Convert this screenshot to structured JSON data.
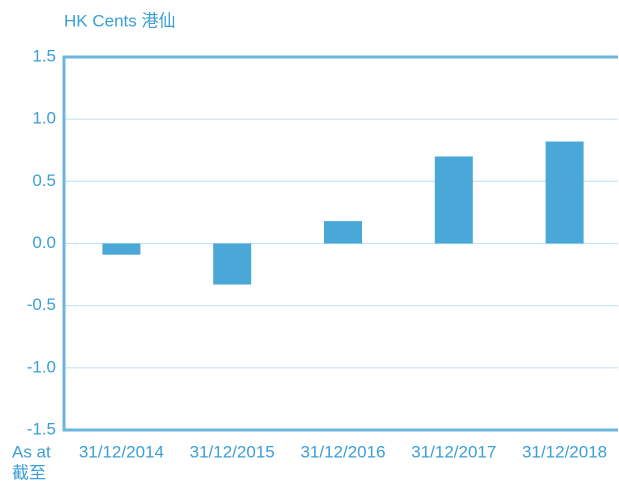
{
  "chart_data": {
    "type": "bar",
    "y_label": "HK Cents 港仙",
    "x_label": [
      "As at",
      "截至"
    ],
    "categories": [
      "31/12/2014",
      "31/12/2015",
      "31/12/2016",
      "31/12/2017",
      "31/12/2018"
    ],
    "values": [
      -0.09,
      -0.33,
      0.18,
      0.7,
      0.82
    ],
    "color": "#4aa8d8",
    "ylim": [
      -1.5,
      1.5
    ],
    "yticks": [
      1.5,
      {
        "value": 1,
        "label": "1.0"
      },
      0.5,
      {
        "value": 0,
        "label": "0.0"
      },
      -0.5,
      {
        "value": -1,
        "label": "-1.0"
      },
      -1.5
    ],
    "grid": true
  }
}
